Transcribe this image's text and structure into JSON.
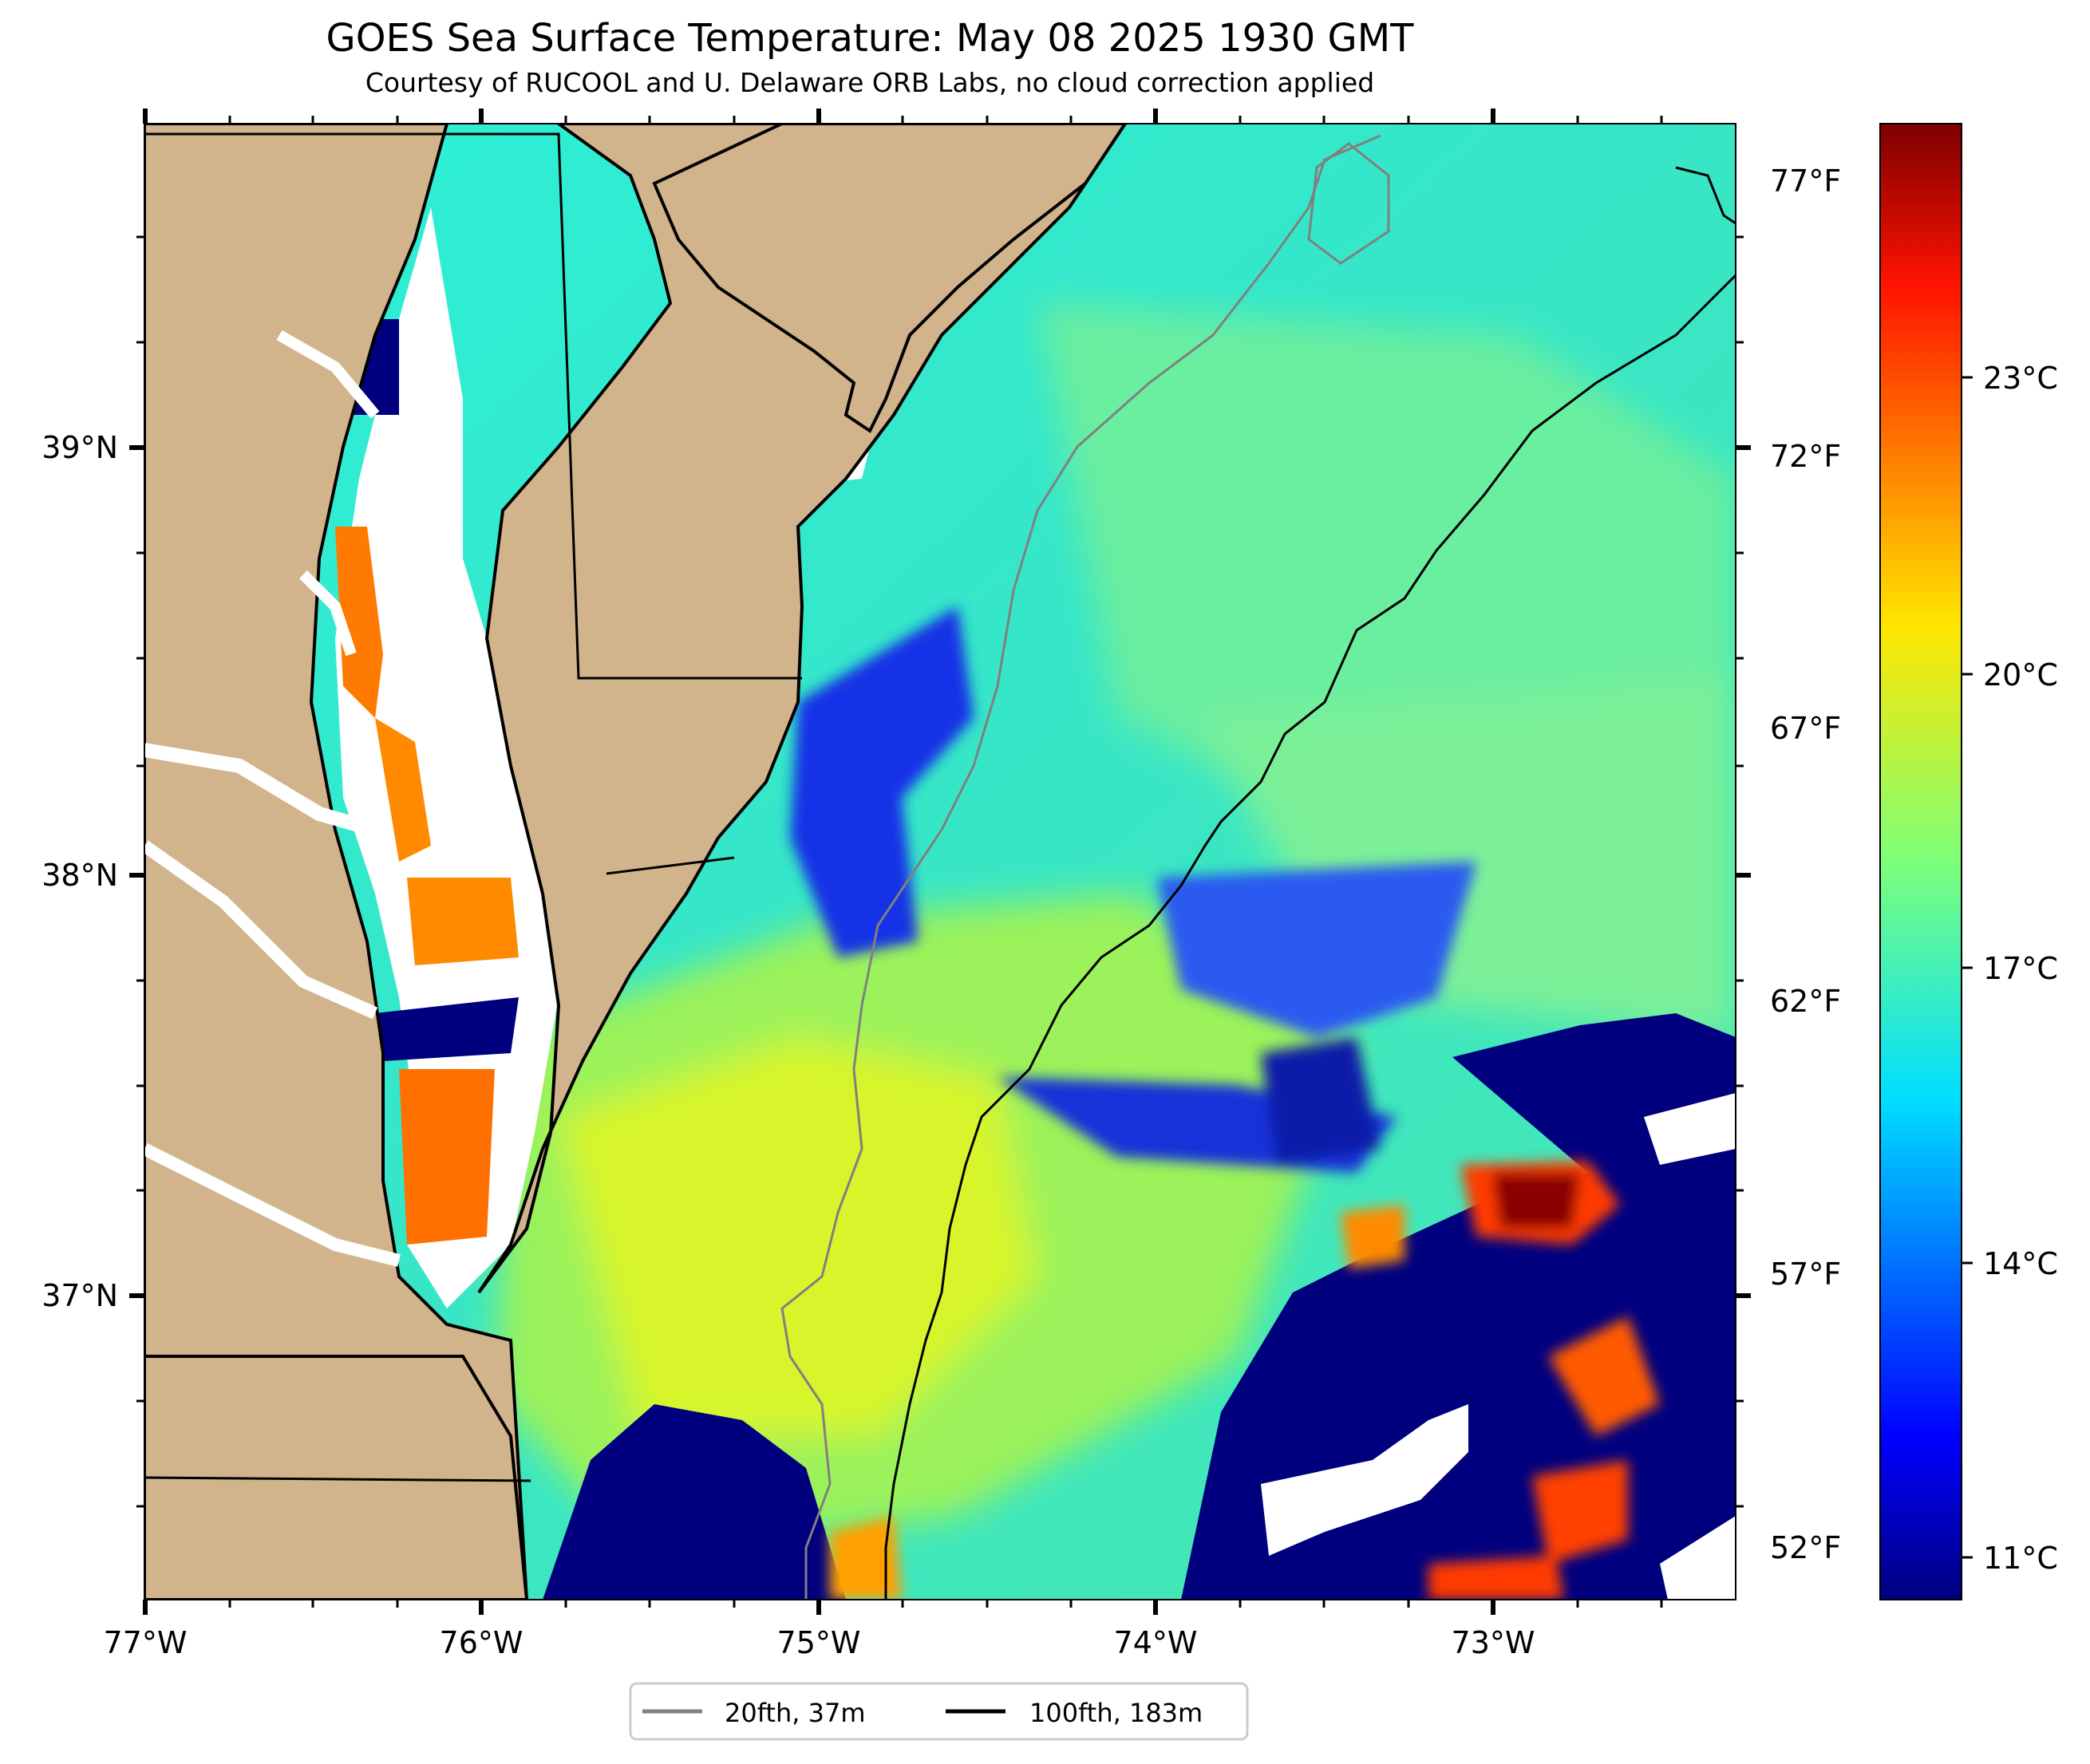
{
  "title": "GOES Sea Surface Temperature: May 08 2025 1930 GMT",
  "subtitle": "Courtesy of RUCOOL and U. Delaware ORB Labs, no cloud correction applied",
  "map": {
    "lon_ticks": [
      "77°W",
      "76°W",
      "75°W",
      "74°W",
      "73°W"
    ],
    "lat_ticks": [
      "39°N",
      "38°N",
      "37°N"
    ],
    "temp_f_ticks": [
      "77°F",
      "72°F",
      "67°F",
      "62°F",
      "57°F",
      "52°F"
    ],
    "colors": {
      "land": "#d2b48c",
      "cloud": "#ffffff",
      "contour_20fth": "#808080",
      "contour_100fth": "#000000"
    }
  },
  "colorbar": {
    "ticks": [
      "23°C",
      "20°C",
      "17°C",
      "14°C",
      "11°C"
    ],
    "colormap": "jet"
  },
  "legend": {
    "items": [
      {
        "label": "20fth, 37m",
        "color": "#808080"
      },
      {
        "label": "100fth, 183m",
        "color": "#000000"
      }
    ]
  }
}
